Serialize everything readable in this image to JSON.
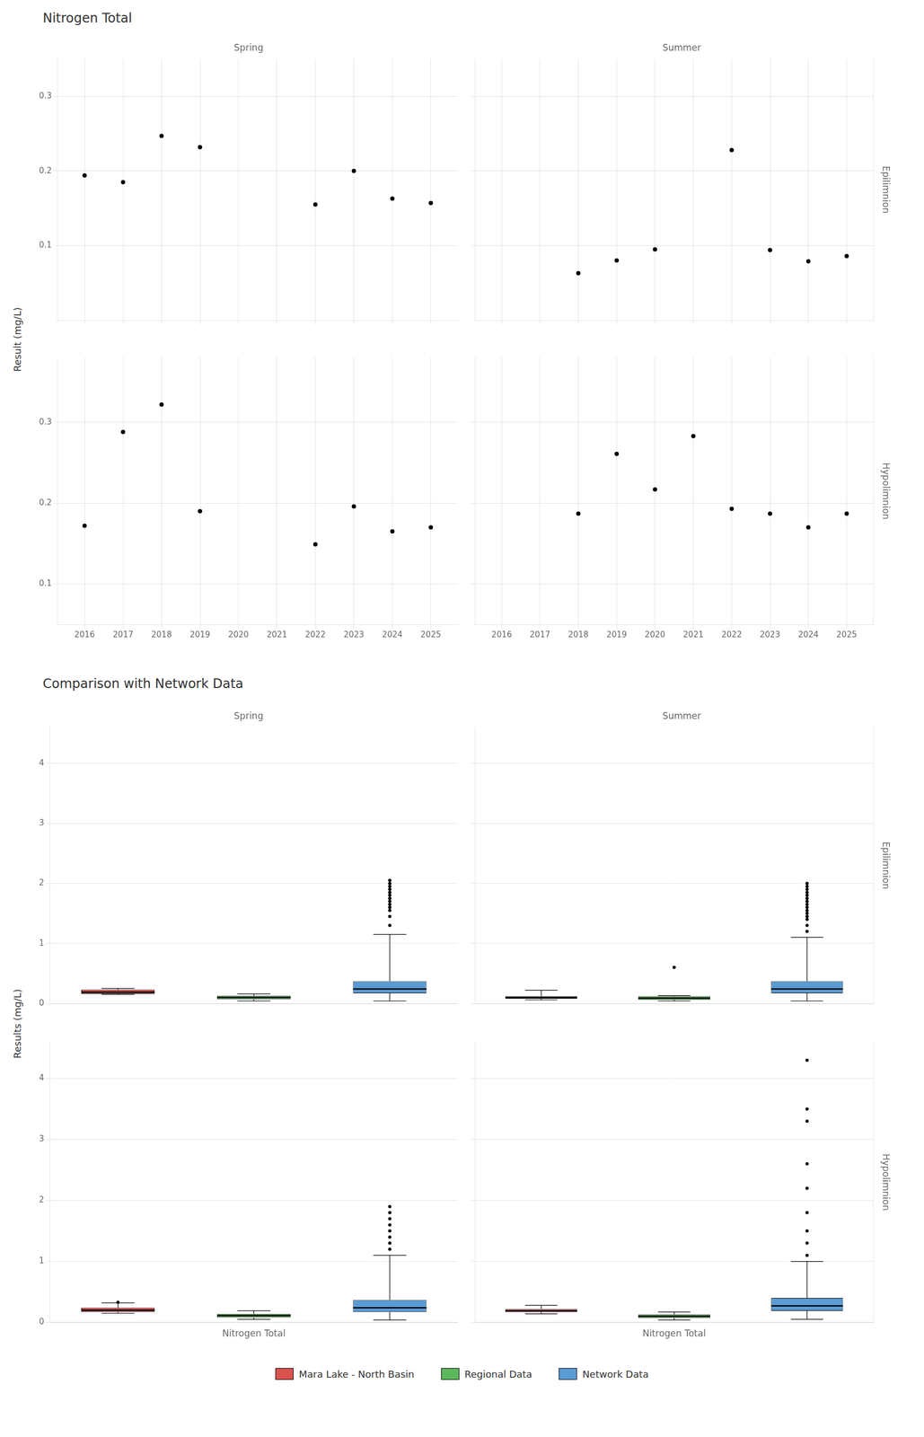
{
  "chart_data": [
    {
      "type": "scatter",
      "title": "Nitrogen Total",
      "y_label": "Result (mg/L)",
      "column_labels": [
        "Spring",
        "Summer"
      ],
      "row_labels": [
        "Epilimnion",
        "Hypolimnion"
      ],
      "color": "black",
      "grid": true,
      "xlim": [
        2015.3,
        2025.7
      ],
      "xticks": [
        2016,
        2017,
        2018,
        2019,
        2020,
        2021,
        2022,
        2023,
        2024,
        2025
      ],
      "yticks": [
        0.1,
        0.2,
        0.3
      ],
      "panels": [
        {
          "column": "Spring",
          "row": "Epilimnion",
          "ylim": [
            0.0,
            0.35
          ],
          "x": [
            2016,
            2017,
            2018,
            2019,
            2022,
            2023,
            2024,
            2025
          ],
          "values": [
            0.194,
            0.185,
            0.247,
            0.232,
            0.155,
            0.2,
            0.163,
            0.157
          ]
        },
        {
          "column": "Summer",
          "row": "Epilimnion",
          "ylim": [
            0.0,
            0.35
          ],
          "x": [
            2018,
            2019,
            2020,
            2022,
            2023,
            2024,
            2025
          ],
          "values": [
            0.063,
            0.08,
            0.095,
            0.228,
            0.094,
            0.079,
            0.086
          ]
        },
        {
          "column": "Spring",
          "row": "Hypolimnion",
          "ylim": [
            0.05,
            0.38
          ],
          "x": [
            2016,
            2017,
            2018,
            2019,
            2022,
            2023,
            2024,
            2025
          ],
          "values": [
            0.172,
            0.288,
            0.322,
            0.19,
            0.149,
            0.196,
            0.165,
            0.17
          ]
        },
        {
          "column": "Summer",
          "row": "Hypolimnion",
          "ylim": [
            0.05,
            0.38
          ],
          "x": [
            2018,
            2019,
            2020,
            2021,
            2022,
            2023,
            2024,
            2025
          ],
          "values": [
            0.187,
            0.261,
            0.217,
            0.283,
            0.193,
            0.187,
            0.17,
            0.187
          ]
        }
      ]
    },
    {
      "type": "box",
      "title": "Comparison with Network Data",
      "y_label": "Results (mg/L)",
      "x_label": "Nitrogen Total",
      "column_labels": [
        "Spring",
        "Summer"
      ],
      "row_labels": [
        "Epilimnion",
        "Hypolimnion"
      ],
      "grid": "y",
      "legend": "bottom",
      "ylim": [
        0,
        4.6
      ],
      "yticks": [
        0,
        1,
        2,
        3,
        4
      ],
      "series": [
        {
          "name": "Mara Lake - North Basin",
          "color": "#d9534f"
        },
        {
          "name": "Regional Data",
          "color": "#5cb85c"
        },
        {
          "name": "Network Data",
          "color": "#5b9bd5"
        }
      ],
      "panels": [
        {
          "column": "Spring",
          "row": "Epilimnion",
          "boxes": [
            {
              "median": 0.19,
              "q1": 0.16,
              "q3": 0.23,
              "whislo": 0.15,
              "whishi": 0.25,
              "fliers": []
            },
            {
              "median": 0.1,
              "q1": 0.07,
              "q3": 0.13,
              "whislo": 0.04,
              "whishi": 0.16,
              "fliers": []
            },
            {
              "median": 0.24,
              "q1": 0.17,
              "q3": 0.37,
              "whislo": 0.04,
              "whishi": 1.15,
              "fliers": [
                1.3,
                1.45,
                1.55,
                1.6,
                1.65,
                1.7,
                1.75,
                1.8,
                1.85,
                1.9,
                1.95,
                2.0,
                2.05
              ]
            }
          ]
        },
        {
          "column": "Summer",
          "row": "Epilimnion",
          "boxes": [
            {
              "median": 0.1,
              "q1": 0.08,
              "q3": 0.12,
              "whislo": 0.06,
              "whishi": 0.22,
              "fliers": []
            },
            {
              "median": 0.09,
              "q1": 0.06,
              "q3": 0.12,
              "whislo": 0.04,
              "whishi": 0.13,
              "fliers": [
                0.6
              ]
            },
            {
              "median": 0.24,
              "q1": 0.17,
              "q3": 0.37,
              "whislo": 0.04,
              "whishi": 1.1,
              "fliers": [
                1.2,
                1.3,
                1.4,
                1.45,
                1.5,
                1.55,
                1.6,
                1.65,
                1.7,
                1.75,
                1.8,
                1.85,
                1.9,
                1.95,
                2.0
              ]
            }
          ]
        },
        {
          "column": "Spring",
          "row": "Hypolimnion",
          "boxes": [
            {
              "median": 0.2,
              "q1": 0.17,
              "q3": 0.24,
              "whislo": 0.15,
              "whishi": 0.32,
              "fliers": [
                0.33
              ]
            },
            {
              "median": 0.11,
              "q1": 0.08,
              "q3": 0.14,
              "whislo": 0.05,
              "whishi": 0.19,
              "fliers": []
            },
            {
              "median": 0.24,
              "q1": 0.17,
              "q3": 0.37,
              "whislo": 0.04,
              "whishi": 1.1,
              "fliers": [
                1.2,
                1.3,
                1.4,
                1.5,
                1.6,
                1.7,
                1.8,
                1.9
              ]
            }
          ]
        },
        {
          "column": "Summer",
          "row": "Hypolimnion",
          "boxes": [
            {
              "median": 0.19,
              "q1": 0.17,
              "q3": 0.22,
              "whislo": 0.14,
              "whishi": 0.28,
              "fliers": []
            },
            {
              "median": 0.1,
              "q1": 0.07,
              "q3": 0.13,
              "whislo": 0.04,
              "whishi": 0.17,
              "fliers": []
            },
            {
              "median": 0.27,
              "q1": 0.19,
              "q3": 0.4,
              "whislo": 0.05,
              "whishi": 1.0,
              "fliers": [
                1.1,
                1.3,
                1.5,
                1.8,
                2.2,
                2.6,
                3.3,
                3.5,
                4.3
              ]
            }
          ]
        }
      ]
    }
  ]
}
